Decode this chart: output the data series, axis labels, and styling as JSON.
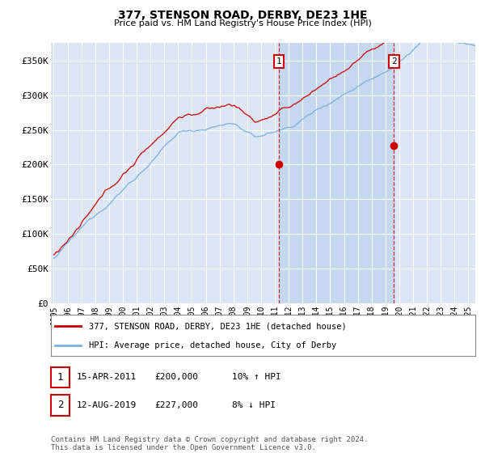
{
  "title": "377, STENSON ROAD, DERBY, DE23 1HE",
  "subtitle": "Price paid vs. HM Land Registry's House Price Index (HPI)",
  "ylabel_ticks": [
    "£0",
    "£50K",
    "£100K",
    "£150K",
    "£200K",
    "£250K",
    "£300K",
    "£350K"
  ],
  "ytick_values": [
    0,
    50000,
    100000,
    150000,
    200000,
    250000,
    300000,
    350000
  ],
  "ylim": [
    0,
    375000
  ],
  "xlim_start": 1994.8,
  "xlim_end": 2025.5,
  "background_color": "#dce6f5",
  "plot_bg_color": "#dce6f5",
  "hpi_color": "#7ab0e0",
  "price_color": "#cc0000",
  "marker1_x": 2011.29,
  "marker1_y": 200000,
  "marker2_x": 2019.62,
  "marker2_y": 227000,
  "band_color": "#c5d8f0",
  "legend_label1": "377, STENSON ROAD, DERBY, DE23 1HE (detached house)",
  "legend_label2": "HPI: Average price, detached house, City of Derby",
  "note1_date": "15-APR-2011",
  "note1_price": "£200,000",
  "note1_hpi": "10% ↑ HPI",
  "note2_date": "12-AUG-2019",
  "note2_price": "£227,000",
  "note2_hpi": "8% ↓ HPI",
  "footer": "Contains HM Land Registry data © Crown copyright and database right 2024.\nThis data is licensed under the Open Government Licence v3.0.",
  "xtick_years": [
    1995,
    1996,
    1997,
    1998,
    1999,
    2000,
    2001,
    2002,
    2003,
    2004,
    2005,
    2006,
    2007,
    2008,
    2009,
    2010,
    2011,
    2012,
    2013,
    2014,
    2015,
    2016,
    2017,
    2018,
    2019,
    2020,
    2021,
    2022,
    2023,
    2024,
    2025
  ],
  "fig_width": 6.0,
  "fig_height": 5.6,
  "dpi": 100
}
